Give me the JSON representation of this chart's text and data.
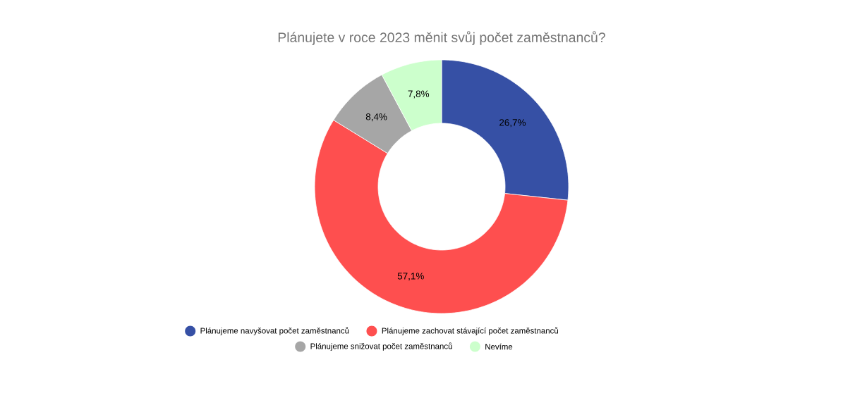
{
  "chart_data": {
    "type": "donut",
    "title": "Plánujete v roce 2023 měnit svůj počet zaměstnanců?",
    "categories": [
      "Plánujeme navyšovat počet zaměstnanců",
      "Plánujeme zachovat stávající počet zaměstnanců",
      "Plánujeme snižovat počet zaměstnanců",
      "Nevíme"
    ],
    "values": [
      26.7,
      57.1,
      8.4,
      7.8
    ],
    "value_labels": [
      "26,7%",
      "57,1%",
      "8,4%",
      "7,8%"
    ],
    "colors": [
      "#3650a5",
      "#fe4f4f",
      "#a6a6a6",
      "#ccffcc"
    ],
    "legend": "bottom"
  }
}
